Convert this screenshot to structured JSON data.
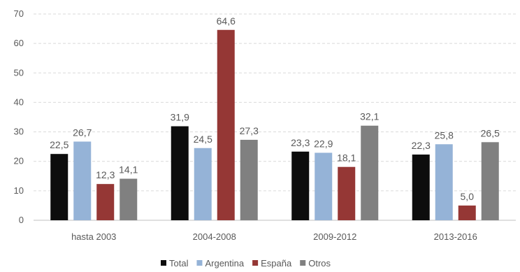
{
  "chart_data": {
    "type": "bar",
    "categories": [
      "hasta 2003",
      "2004-2008",
      "2009-2012",
      "2013-2016"
    ],
    "series": [
      {
        "name": "Total",
        "values": [
          22.5,
          31.9,
          23.3,
          22.3
        ],
        "labels": [
          "22,5",
          "31,9",
          "23,3",
          "22,3"
        ]
      },
      {
        "name": "Argentina",
        "values": [
          26.7,
          24.5,
          22.9,
          25.8
        ],
        "labels": [
          "26,7",
          "24,5",
          "22,9",
          "25,8"
        ]
      },
      {
        "name": "España",
        "values": [
          12.3,
          64.6,
          18.1,
          5.0
        ],
        "labels": [
          "12,3",
          "64,6",
          "18,1",
          "5,0"
        ]
      },
      {
        "name": "Otros",
        "values": [
          14.1,
          27.3,
          32.1,
          26.5
        ],
        "labels": [
          "14,1",
          "27,3",
          "32,1",
          "26,5"
        ]
      }
    ],
    "colors": [
      "#0d0d0d",
      "#95b3d7",
      "#953735",
      "#808080"
    ],
    "ylim": [
      0,
      70
    ],
    "yticks": [
      "0",
      "10",
      "20",
      "30",
      "40",
      "50",
      "60",
      "70"
    ],
    "grid": true,
    "legend": "bottom"
  }
}
